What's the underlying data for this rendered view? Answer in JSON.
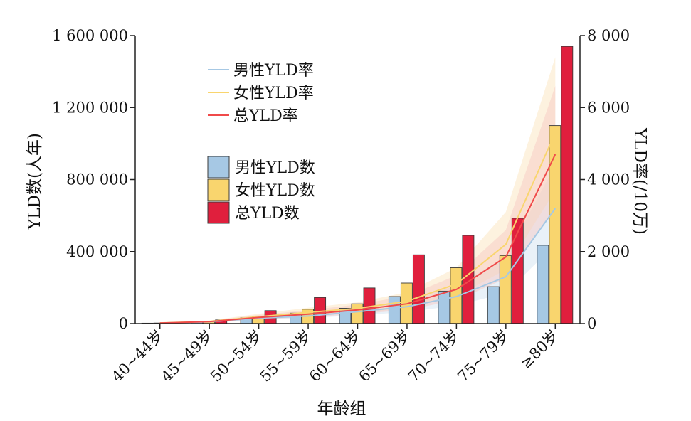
{
  "chart_data": {
    "type": "bar",
    "xlabel": "年龄组",
    "ylabel": "YLD数(人年)",
    "ylabel_right": "YLD率(/10万)",
    "categories": [
      "40~44岁",
      "45~49岁",
      "50~54岁",
      "55~59岁",
      "60~64岁",
      "65~69岁",
      "70~74岁",
      "75~79岁",
      "≥80岁"
    ],
    "ylim": [
      0,
      1600000
    ],
    "y_ticks": [
      {
        "value": 0,
        "label": "0"
      },
      {
        "value": 400000,
        "label": "400 000"
      },
      {
        "value": 800000,
        "label": "800 000"
      },
      {
        "value": 1200000,
        "label": "1 200 000"
      },
      {
        "value": 1600000,
        "label": "1 600 000"
      }
    ],
    "ylim_right": [
      0,
      8000
    ],
    "y_ticks_right": [
      {
        "value": 0,
        "label": "0"
      },
      {
        "value": 2000,
        "label": "2 000"
      },
      {
        "value": 4000,
        "label": "4 000"
      },
      {
        "value": 6000,
        "label": "6 000"
      },
      {
        "value": 8000,
        "label": "8 000"
      }
    ],
    "bar_series": [
      {
        "name": "男性YLD数",
        "color": "#a6c8e4",
        "values": [
          2500,
          9000,
          32000,
          58000,
          85000,
          150000,
          180000,
          205000,
          435000
        ]
      },
      {
        "name": "女性YLD数",
        "color": "#f9d56e",
        "values": [
          3000,
          10000,
          40000,
          80000,
          110000,
          225000,
          310000,
          378000,
          1100000
        ]
      },
      {
        "name": "总YLD数",
        "color": "#e01f3d",
        "values": [
          5000,
          20000,
          72000,
          145000,
          198000,
          382000,
          490000,
          585000,
          1540000
        ]
      }
    ],
    "line_series": [
      {
        "name": "男性YLD率",
        "color": "#a6c8e4",
        "band_color": "#cfe0ef",
        "values": [
          15,
          50,
          150,
          210,
          330,
          470,
          750,
          1300,
          3200
        ],
        "lower": [
          10,
          35,
          100,
          150,
          230,
          320,
          500,
          850,
          2200
        ],
        "upper": [
          20,
          70,
          210,
          290,
          450,
          640,
          1050,
          1850,
          4400
        ]
      },
      {
        "name": "女性YLD率",
        "color": "#f9d56e",
        "band_color": "#fbe3b8",
        "values": [
          18,
          60,
          190,
          310,
          420,
          620,
          1100,
          2200,
          5300
        ],
        "lower": [
          12,
          40,
          130,
          210,
          290,
          430,
          750,
          1500,
          3700
        ],
        "upper": [
          26,
          85,
          270,
          440,
          590,
          870,
          1550,
          3100,
          7400
        ]
      },
      {
        "name": "总YLD率",
        "color": "#f04a4a",
        "band_color": "#f7c6c0",
        "values": [
          16,
          55,
          170,
          260,
          380,
          550,
          950,
          1850,
          4700
        ],
        "lower": [
          11,
          38,
          115,
          180,
          260,
          380,
          650,
          1250,
          3200
        ],
        "upper": [
          23,
          78,
          240,
          370,
          530,
          770,
          1340,
          2600,
          6600
        ]
      }
    ],
    "legend_position": "upper-left",
    "grid": false
  }
}
